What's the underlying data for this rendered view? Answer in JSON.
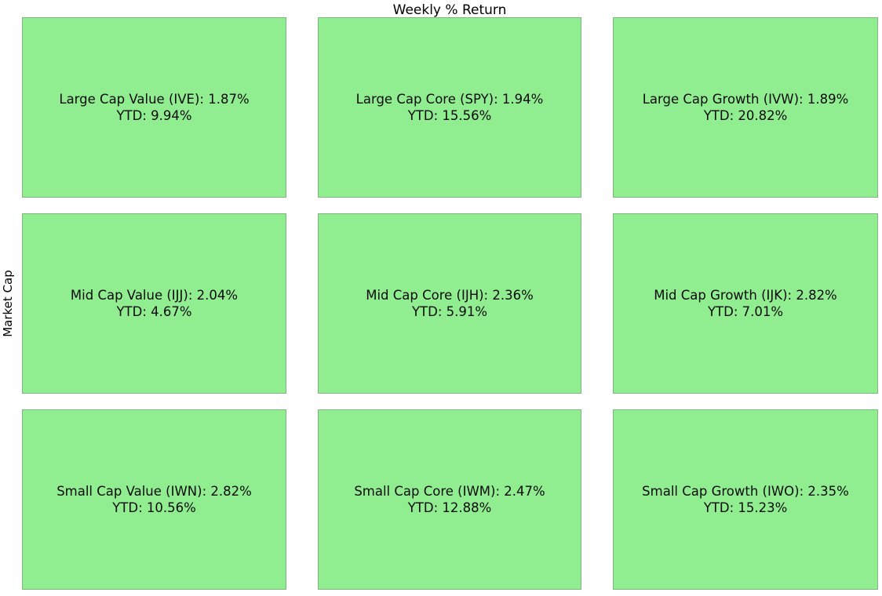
{
  "chart_data": {
    "type": "heatmap",
    "title": "Weekly % Return",
    "ylabel": "Market Cap",
    "rows": [
      "Large Cap",
      "Mid Cap",
      "Small Cap"
    ],
    "columns": [
      "Value",
      "Core",
      "Growth"
    ],
    "cell_fill_color": "#90EE90",
    "legend_position": "none",
    "grid": "3x3 style box, white gaps between cells",
    "cells": [
      [
        {
          "name": "Large Cap Value",
          "ticker": "IVE",
          "weekly_pct": 1.87,
          "ytd_pct": 9.94,
          "line1": "Large Cap Value (IVE): 1.87%",
          "line2": "YTD: 9.94%"
        },
        {
          "name": "Large Cap Core",
          "ticker": "SPY",
          "weekly_pct": 1.94,
          "ytd_pct": 15.56,
          "line1": "Large Cap Core (SPY): 1.94%",
          "line2": "YTD: 15.56%"
        },
        {
          "name": "Large Cap Growth",
          "ticker": "IVW",
          "weekly_pct": 1.89,
          "ytd_pct": 20.82,
          "line1": "Large Cap Growth (IVW): 1.89%",
          "line2": "YTD: 20.82%"
        }
      ],
      [
        {
          "name": "Mid Cap Value",
          "ticker": "IJJ",
          "weekly_pct": 2.04,
          "ytd_pct": 4.67,
          "line1": "Mid Cap Value (IJJ): 2.04%",
          "line2": "YTD: 4.67%"
        },
        {
          "name": "Mid Cap Core",
          "ticker": "IJH",
          "weekly_pct": 2.36,
          "ytd_pct": 5.91,
          "line1": "Mid Cap Core (IJH): 2.36%",
          "line2": "YTD: 5.91%"
        },
        {
          "name": "Mid Cap Growth",
          "ticker": "IJK",
          "weekly_pct": 2.82,
          "ytd_pct": 7.01,
          "line1": "Mid Cap Growth (IJK): 2.82%",
          "line2": "YTD: 7.01%"
        }
      ],
      [
        {
          "name": "Small Cap Value",
          "ticker": "IWN",
          "weekly_pct": 2.82,
          "ytd_pct": 10.56,
          "line1": "Small Cap Value (IWN): 2.82%",
          "line2": "YTD: 10.56%"
        },
        {
          "name": "Small Cap Core",
          "ticker": "IWM",
          "weekly_pct": 2.47,
          "ytd_pct": 12.88,
          "line1": "Small Cap Core (IWM): 2.47%",
          "line2": "YTD: 12.88%"
        },
        {
          "name": "Small Cap Growth",
          "ticker": "IWO",
          "weekly_pct": 2.35,
          "ytd_pct": 15.23,
          "line1": "Small Cap Growth (IWO): 2.35%",
          "line2": "YTD: 15.23%"
        }
      ]
    ]
  }
}
